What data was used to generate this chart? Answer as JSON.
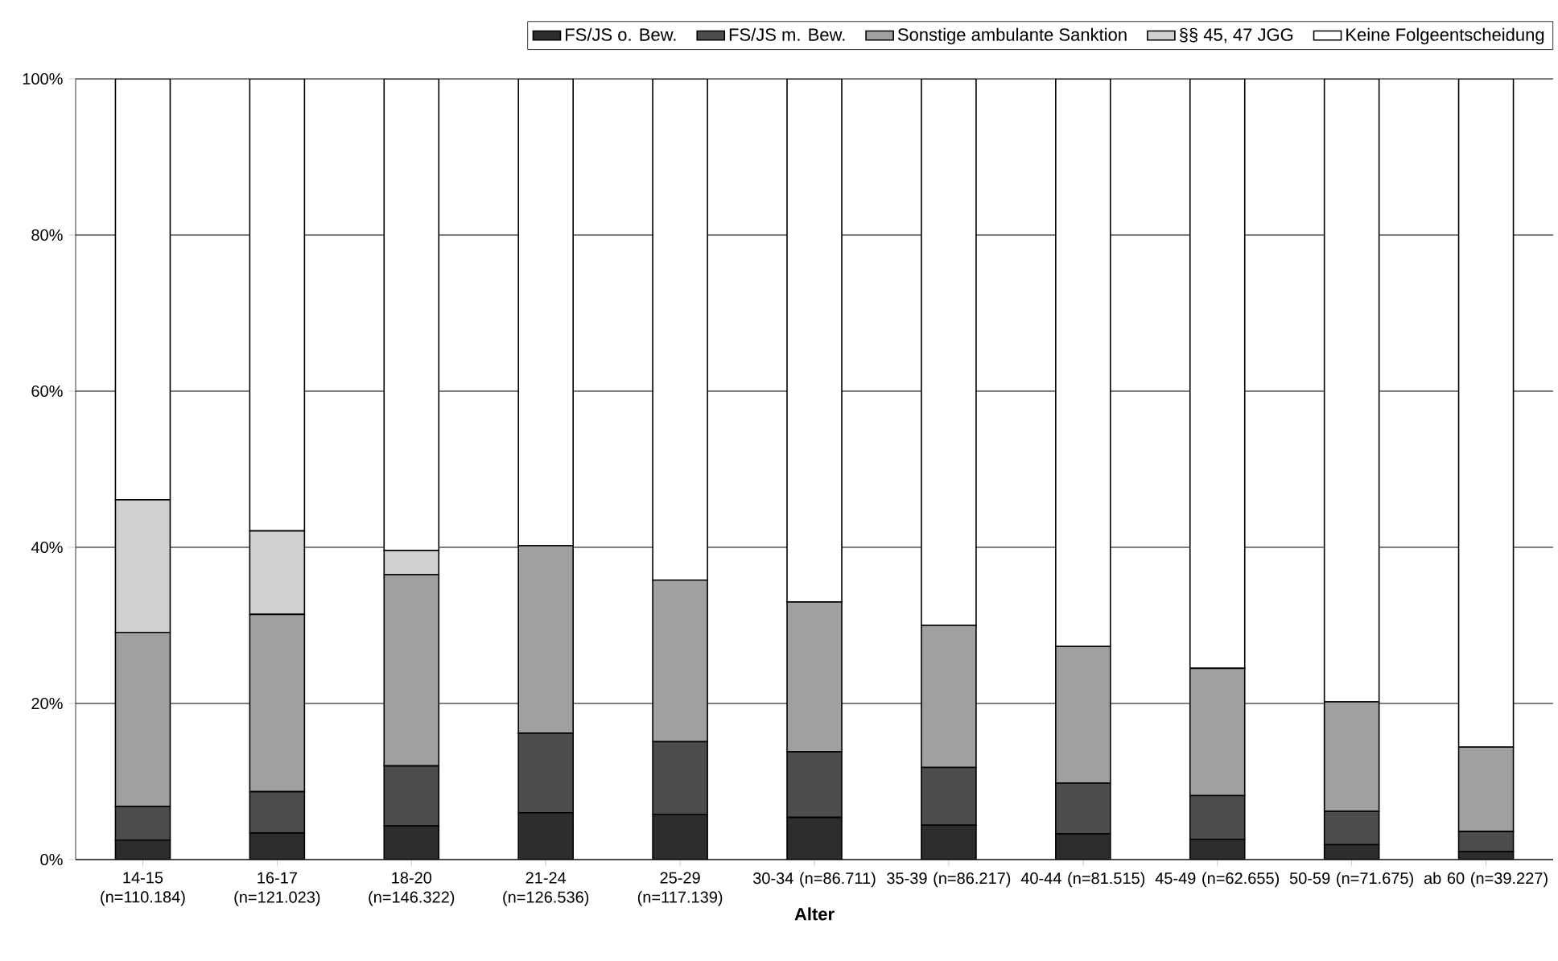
{
  "chart_data": {
    "type": "bar",
    "stacked": true,
    "xlabel": "Alter",
    "categories": [
      "14-15 (n=110.184)",
      "16-17 (n=121.023)",
      "18-20 (n=146.322)",
      "21-24 (n=126.536)",
      "25-29 (n=117.139)",
      "30-34 (n=86.711)",
      "35-39 (n=86.217)",
      "40-44 (n=81.515)",
      "45-49 (n=62.655)",
      "50-59 (n=71.675)",
      "ab 60 (n=39.227)"
    ],
    "series": [
      {
        "name": "FS/JS o. Bew.",
        "color": "#2d2d2d",
        "values": [
          2.5,
          3.4,
          4.3,
          6.0,
          5.8,
          5.4,
          4.4,
          3.3,
          2.6,
          1.9,
          1.0
        ]
      },
      {
        "name": "FS/JS m. Bew.",
        "color": "#4d4d4d",
        "values": [
          4.3,
          5.3,
          7.7,
          10.2,
          9.3,
          8.4,
          7.4,
          6.5,
          5.6,
          4.3,
          2.6
        ]
      },
      {
        "name": "Sonstige ambulante Sanktion",
        "color": "#a0a0a0",
        "values": [
          22.3,
          22.7,
          24.5,
          24.0,
          20.7,
          19.2,
          18.2,
          17.5,
          16.3,
          14.0,
          10.8
        ]
      },
      {
        "name": "§§ 45, 47 JGG",
        "color": "#d0d0d0",
        "values": [
          17.0,
          10.7,
          3.1,
          0,
          0,
          0,
          0,
          0,
          0,
          0,
          0
        ]
      },
      {
        "name": "Keine Folgeentscheidung",
        "color": "#ffffff",
        "values": [
          53.9,
          57.9,
          60.4,
          59.8,
          64.2,
          67.0,
          70.0,
          72.7,
          75.5,
          79.8,
          85.6
        ]
      }
    ],
    "ylim": [
      0,
      100
    ],
    "yticks": [
      {
        "value": 0,
        "label": "0%"
      },
      {
        "value": 20,
        "label": "20%"
      },
      {
        "value": 40,
        "label": "40%"
      },
      {
        "value": 60,
        "label": "60%"
      },
      {
        "value": 80,
        "label": "80%"
      },
      {
        "value": 100,
        "label": "100%"
      }
    ],
    "grid": "y",
    "legend": "top"
  }
}
